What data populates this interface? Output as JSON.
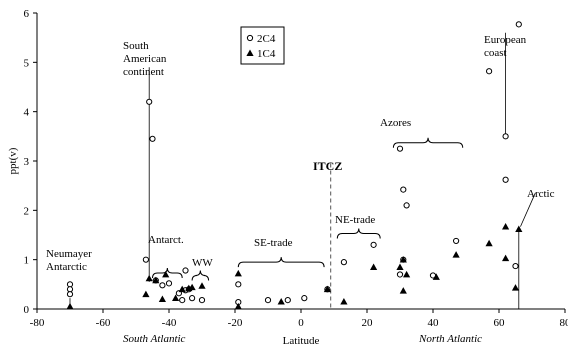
{
  "chart_data": {
    "type": "scatter",
    "xlabel": "Latitude",
    "ylabel": "ppt(v)",
    "xlim": [
      -80,
      80
    ],
    "ylim": [
      0,
      6
    ],
    "xticks": [
      -80,
      -60,
      -40,
      -20,
      0,
      20,
      40,
      60,
      80
    ],
    "yticks": [
      0,
      1,
      2,
      3,
      4,
      5,
      6
    ],
    "grid": false,
    "legend_position": "top-left",
    "series": [
      {
        "name": "2C4",
        "marker": "open-circle",
        "points": [
          [
            -70,
            0.5
          ],
          [
            -70,
            0.4
          ],
          [
            -70,
            0.3
          ],
          [
            -47,
            1.0
          ],
          [
            -46,
            4.2
          ],
          [
            -45,
            3.45
          ],
          [
            -44,
            0.58
          ],
          [
            -42,
            0.48
          ],
          [
            -40,
            0.52
          ],
          [
            -37,
            0.32
          ],
          [
            -35,
            0.38
          ],
          [
            -34,
            0.4
          ],
          [
            -35,
            0.78
          ],
          [
            -36,
            0.18
          ],
          [
            -33,
            0.22
          ],
          [
            -30,
            0.18
          ],
          [
            -19,
            0.5
          ],
          [
            -19,
            0.14
          ],
          [
            -10,
            0.18
          ],
          [
            -4,
            0.18
          ],
          [
            1,
            0.22
          ],
          [
            8,
            0.4
          ],
          [
            13,
            0.95
          ],
          [
            22,
            1.3
          ],
          [
            30,
            0.7
          ],
          [
            30,
            3.25
          ],
          [
            31,
            2.42
          ],
          [
            32,
            2.1
          ],
          [
            31,
            1.0
          ],
          [
            40,
            0.68
          ],
          [
            47,
            1.38
          ],
          [
            57,
            4.82
          ],
          [
            62,
            3.5
          ],
          [
            62,
            2.62
          ],
          [
            66,
            5.77
          ],
          [
            65,
            0.87
          ]
        ]
      },
      {
        "name": "1C4",
        "marker": "filled-triangle",
        "points": [
          [
            -70,
            0.05
          ],
          [
            -47,
            0.3
          ],
          [
            -46,
            0.62
          ],
          [
            -44,
            0.58
          ],
          [
            -42,
            0.2
          ],
          [
            -41,
            0.7
          ],
          [
            -38,
            0.22
          ],
          [
            -36,
            0.4
          ],
          [
            -34,
            0.42
          ],
          [
            -33,
            0.44
          ],
          [
            -30,
            0.47
          ],
          [
            -19,
            0.72
          ],
          [
            -19,
            0.05
          ],
          [
            -6,
            0.15
          ],
          [
            8,
            0.4
          ],
          [
            13,
            0.15
          ],
          [
            22,
            0.85
          ],
          [
            30,
            0.85
          ],
          [
            31,
            1.0
          ],
          [
            31,
            0.37
          ],
          [
            32,
            0.7
          ],
          [
            41,
            0.65
          ],
          [
            47,
            1.1
          ],
          [
            57,
            1.33
          ],
          [
            62,
            1.67
          ],
          [
            62,
            1.03
          ],
          [
            65,
            0.43
          ],
          [
            66,
            1.62
          ]
        ]
      }
    ],
    "annotations": {
      "south_american": "South\nAmerican\ncontinent",
      "european": "European\ncoast",
      "azores": "Azores",
      "itcz": "ITCZ",
      "ne_trade": "NE-trade",
      "arctic": "Arctic",
      "neumayer": "Neumayer\nAntarctic",
      "antarct": "Antarct.",
      "ww": "WW",
      "se_trade": "SE-trade",
      "south_atlantic": "South Atlantic",
      "north_atlantic": "North Atlantic"
    }
  }
}
